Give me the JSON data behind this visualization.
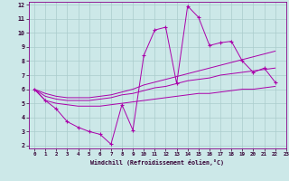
{
  "xlabel": "Windchill (Refroidissement éolien,°C)",
  "xlim": [
    -0.5,
    23
  ],
  "ylim": [
    1.8,
    12.2
  ],
  "xticks": [
    0,
    1,
    2,
    3,
    4,
    5,
    6,
    7,
    8,
    9,
    10,
    11,
    12,
    13,
    14,
    15,
    16,
    17,
    18,
    19,
    20,
    21,
    22,
    23
  ],
  "yticks": [
    2,
    3,
    4,
    5,
    6,
    7,
    8,
    9,
    10,
    11,
    12
  ],
  "background_color": "#cce8e8",
  "grid_color": "#aacccc",
  "line_color": "#aa00aa",
  "line1_y": [
    6.0,
    5.2,
    4.6,
    3.7,
    3.3,
    3.0,
    2.8,
    2.1,
    4.9,
    3.1,
    8.4,
    10.2,
    10.4,
    6.4,
    11.9,
    11.1,
    9.1,
    9.3,
    9.4,
    8.0,
    7.2,
    7.5,
    6.5,
    null
  ],
  "line2_y": [
    6.0,
    5.7,
    5.5,
    5.4,
    5.4,
    5.4,
    5.5,
    5.6,
    5.8,
    6.0,
    6.3,
    6.5,
    6.7,
    6.9,
    7.1,
    7.3,
    7.5,
    7.7,
    7.9,
    8.1,
    8.3,
    8.5,
    8.7,
    null
  ],
  "line3_y": [
    6.0,
    5.5,
    5.3,
    5.2,
    5.2,
    5.2,
    5.3,
    5.4,
    5.6,
    5.7,
    5.9,
    6.1,
    6.2,
    6.4,
    6.6,
    6.7,
    6.8,
    7.0,
    7.1,
    7.2,
    7.3,
    7.4,
    7.5,
    null
  ],
  "line4_y": [
    6.0,
    5.2,
    5.0,
    4.9,
    4.8,
    4.8,
    4.8,
    4.9,
    5.0,
    5.1,
    5.2,
    5.3,
    5.4,
    5.5,
    5.6,
    5.7,
    5.7,
    5.8,
    5.9,
    6.0,
    6.0,
    6.1,
    6.2,
    null
  ]
}
